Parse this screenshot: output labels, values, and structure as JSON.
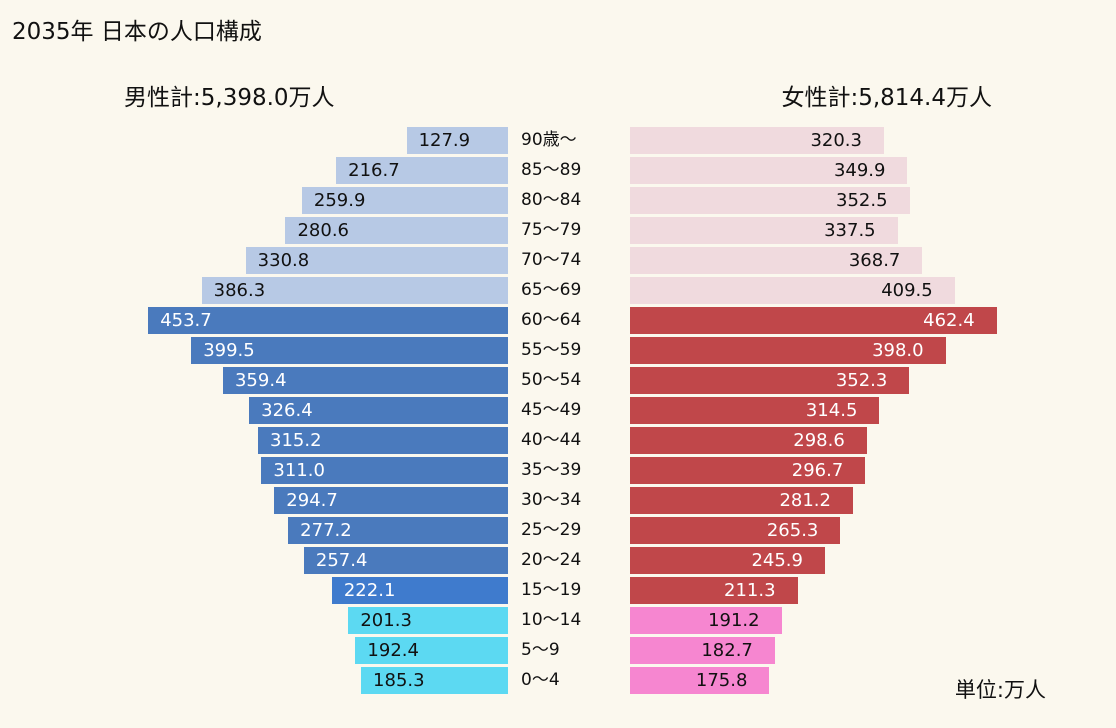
{
  "title": "2035年 日本の人口構成",
  "male_total": "男性計:5,398.0万人",
  "female_total": "女性計:5,814.4万人",
  "unit": "単位:万人",
  "colors": {
    "background": "#fbf8ee",
    "male_elderly": "#b7c9e5",
    "male_working": "#4a7abd",
    "male_15_19": "#3f7bcd",
    "male_child": "#5cd9f2",
    "female_elderly": "#f0dade",
    "female_working": "#c0474a",
    "female_child": "#f686d0"
  },
  "chart_data": {
    "type": "bar",
    "orientation": "horizontal-pyramid",
    "title": "2035年 日本の人口構成",
    "categories": [
      "90歳〜",
      "85〜89",
      "80〜84",
      "75〜79",
      "70〜74",
      "65〜69",
      "60〜64",
      "55〜59",
      "50〜54",
      "45〜49",
      "40〜44",
      "35〜39",
      "30〜34",
      "25〜29",
      "20〜24",
      "15〜19",
      "10〜14",
      "5〜9",
      "0〜4"
    ],
    "series": [
      {
        "name": "男性計:5,398.0万人",
        "side": "left",
        "values": [
          127.9,
          216.7,
          259.9,
          280.6,
          330.8,
          386.3,
          453.7,
          399.5,
          359.4,
          326.4,
          315.2,
          311.0,
          294.7,
          277.2,
          257.4,
          222.1,
          201.3,
          192.4,
          185.3
        ],
        "labels": [
          "127.9",
          "216.7",
          "259.9",
          "280.6",
          "330.8",
          "386.3",
          "453.7",
          "399.5",
          "359.4",
          "326.4",
          "315.2",
          "311.0",
          "294.7",
          "277.2",
          "257.4",
          "222.1",
          "201.3",
          "192.4",
          "185.3"
        ]
      },
      {
        "name": "女性計:5,814.4万人",
        "side": "right",
        "values": [
          320.3,
          349.9,
          352.5,
          337.5,
          368.7,
          409.5,
          462.4,
          398.0,
          352.3,
          314.5,
          298.6,
          296.7,
          281.2,
          265.3,
          245.9,
          211.3,
          191.2,
          182.7,
          175.8
        ],
        "labels": [
          "320.3",
          "349.9",
          "352.5",
          "337.5",
          "368.7",
          "409.5",
          "462.4",
          "398.0",
          "352.3",
          "314.5",
          "298.6",
          "296.7",
          "281.2",
          "265.3",
          "245.9",
          "211.3",
          "191.2",
          "182.7",
          "175.8"
        ]
      }
    ],
    "unit": "単位:万人",
    "grid": false,
    "xlim": [
      0,
      470
    ]
  }
}
